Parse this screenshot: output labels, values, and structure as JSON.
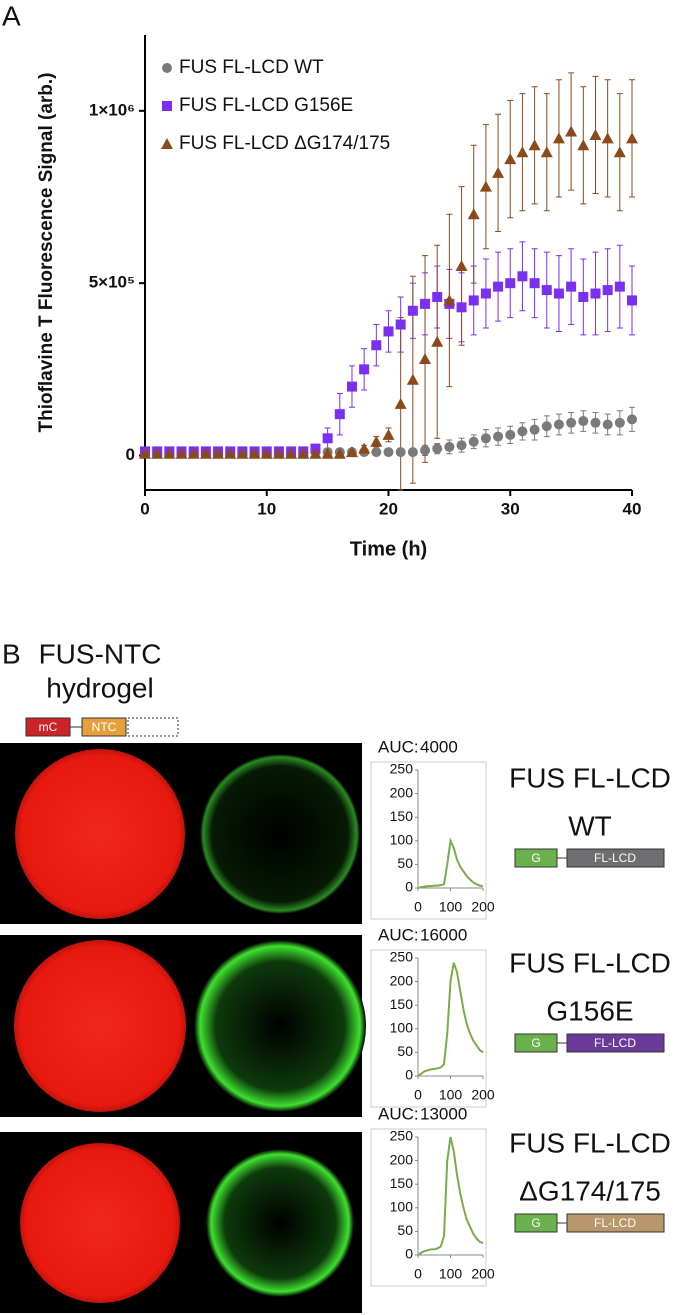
{
  "panel_labels": [
    "A",
    "B"
  ],
  "panel_b": {
    "title": [
      "FUS-NTC",
      "hydrogel"
    ],
    "construct": [
      "mC",
      "NTC"
    ],
    "rows": [
      {
        "name": [
          "FUS FL-LCD",
          "WT"
        ],
        "construct": [
          "G",
          "FL-LCD"
        ],
        "color": "#6d6e70"
      },
      {
        "name": [
          "FUS FL-LCD",
          "G156E"
        ],
        "construct": [
          "G",
          "FL-LCD"
        ],
        "color": "#6a3a9a"
      },
      {
        "name": [
          "FUS FL-LCD",
          "ΔG174/175"
        ],
        "construct": [
          "G",
          "FL-LCD"
        ],
        "color": "#b7976b"
      }
    ]
  },
  "chart_data": [
    {
      "type": "scatter",
      "xlabel": "Time (h)",
      "ylabel": "Thioflavine T Fluorescence Signal (arb.)",
      "xlim": [
        0,
        40
      ],
      "xticks": [
        0,
        10,
        20,
        30,
        40
      ],
      "ylim": [
        -100000,
        1220000
      ],
      "yticks": [
        {
          "value": 0,
          "label": "0"
        },
        {
          "value": 500000,
          "label": "5×10⁵"
        },
        {
          "value": 1000000,
          "label": "1×10⁶"
        }
      ],
      "legend": "top-left",
      "x": [
        0,
        1,
        2,
        3,
        4,
        5,
        6,
        7,
        8,
        9,
        10,
        11,
        12,
        13,
        14,
        15,
        16,
        17,
        18,
        19,
        20,
        21,
        22,
        23,
        24,
        25,
        26,
        27,
        28,
        29,
        30,
        31,
        32,
        33,
        34,
        35,
        36,
        37,
        38,
        39,
        40
      ],
      "series": [
        {
          "name": "FUS FL-LCD WT",
          "color": "#7a7a7a",
          "marker": "circle",
          "values": [
            10000,
            10000,
            10000,
            10000,
            10000,
            10000,
            10000,
            10000,
            10000,
            10000,
            10000,
            10000,
            10000,
            10000,
            10000,
            10000,
            10000,
            10000,
            10000,
            10000,
            10000,
            10000,
            10000,
            15000,
            20000,
            25000,
            30000,
            40000,
            50000,
            55000,
            60000,
            70000,
            75000,
            85000,
            90000,
            95000,
            100000,
            95000,
            90000,
            95000,
            105000
          ],
          "errors": [
            5000,
            5000,
            5000,
            5000,
            5000,
            5000,
            5000,
            5000,
            5000,
            5000,
            5000,
            5000,
            5000,
            5000,
            5000,
            5000,
            5000,
            5000,
            5000,
            5000,
            5000,
            5000,
            5000,
            15000,
            15000,
            20000,
            20000,
            20000,
            25000,
            25000,
            25000,
            25000,
            30000,
            30000,
            30000,
            30000,
            30000,
            30000,
            30000,
            35000,
            35000
          ]
        },
        {
          "name": "FUS FL-LCD G156E",
          "color": "#7b2ff0",
          "marker": "square",
          "values": [
            12000,
            12000,
            12000,
            12000,
            12000,
            12000,
            12000,
            12000,
            12000,
            12000,
            12000,
            12000,
            12000,
            12000,
            20000,
            50000,
            120000,
            200000,
            250000,
            320000,
            360000,
            380000,
            420000,
            440000,
            460000,
            440000,
            430000,
            450000,
            470000,
            490000,
            500000,
            520000,
            500000,
            480000,
            470000,
            490000,
            460000,
            470000,
            480000,
            490000,
            450000
          ],
          "errors": [
            5000,
            5000,
            5000,
            5000,
            5000,
            5000,
            5000,
            5000,
            5000,
            5000,
            5000,
            5000,
            5000,
            5000,
            10000,
            30000,
            60000,
            60000,
            60000,
            60000,
            60000,
            80000,
            80000,
            90000,
            90000,
            100000,
            100000,
            100000,
            100000,
            100000,
            100000,
            100000,
            100000,
            110000,
            110000,
            110000,
            110000,
            120000,
            120000,
            120000,
            100000
          ]
        },
        {
          "name": "FUS FL-LCD ΔG174/175",
          "color": "#8b4a1c",
          "marker": "triangle",
          "values": [
            5000,
            5000,
            5000,
            5000,
            5000,
            5000,
            5000,
            5000,
            5000,
            5000,
            5000,
            5000,
            5000,
            5000,
            5000,
            5000,
            5000,
            10000,
            20000,
            40000,
            60000,
            150000,
            220000,
            280000,
            330000,
            450000,
            550000,
            700000,
            780000,
            820000,
            860000,
            880000,
            900000,
            880000,
            920000,
            940000,
            900000,
            930000,
            920000,
            880000,
            920000
          ],
          "errors": [
            5000,
            5000,
            5000,
            5000,
            5000,
            5000,
            5000,
            5000,
            5000,
            5000,
            5000,
            5000,
            5000,
            5000,
            5000,
            5000,
            5000,
            8000,
            10000,
            15000,
            20000,
            250000,
            300000,
            300000,
            280000,
            250000,
            230000,
            200000,
            180000,
            170000,
            170000,
            170000,
            170000,
            170000,
            170000,
            170000,
            170000,
            170000,
            170000,
            170000,
            170000
          ]
        }
      ]
    },
    {
      "type": "line",
      "annotation": "AUC:",
      "auc": 4000,
      "color": "#78ad4a",
      "xlim": [
        0,
        200
      ],
      "xticks": [
        0,
        100,
        200
      ],
      "ylim": [
        0,
        250
      ],
      "yticks": [
        0,
        50,
        100,
        150,
        200,
        250
      ],
      "x": [
        0,
        10,
        20,
        30,
        40,
        50,
        60,
        70,
        80,
        90,
        100,
        110,
        120,
        130,
        140,
        150,
        160,
        170,
        180,
        190,
        200
      ],
      "values": [
        0,
        2,
        3,
        4,
        4,
        5,
        5,
        6,
        8,
        50,
        100,
        85,
        60,
        45,
        35,
        25,
        18,
        12,
        8,
        5,
        4
      ]
    },
    {
      "type": "line",
      "annotation": "AUC:",
      "auc": 16000,
      "color": "#78ad4a",
      "xlim": [
        0,
        200
      ],
      "xticks": [
        0,
        100,
        200
      ],
      "ylim": [
        0,
        250
      ],
      "yticks": [
        0,
        50,
        100,
        150,
        200,
        250
      ],
      "x": [
        0,
        10,
        20,
        30,
        40,
        50,
        60,
        70,
        80,
        90,
        100,
        110,
        120,
        130,
        140,
        150,
        160,
        170,
        180,
        190,
        200
      ],
      "values": [
        0,
        5,
        10,
        12,
        14,
        15,
        16,
        18,
        25,
        90,
        200,
        240,
        220,
        180,
        140,
        110,
        90,
        75,
        65,
        55,
        50
      ]
    },
    {
      "type": "line",
      "annotation": "AUC:",
      "auc": 13000,
      "color": "#78ad4a",
      "xlim": [
        0,
        200
      ],
      "xticks": [
        0,
        100,
        200
      ],
      "ylim": [
        0,
        250
      ],
      "yticks": [
        0,
        50,
        100,
        150,
        200,
        250
      ],
      "x": [
        0,
        10,
        20,
        30,
        40,
        50,
        60,
        70,
        80,
        90,
        100,
        110,
        120,
        130,
        140,
        150,
        160,
        170,
        180,
        190,
        200
      ],
      "values": [
        0,
        5,
        8,
        10,
        12,
        12,
        14,
        18,
        40,
        200,
        250,
        220,
        170,
        130,
        100,
        75,
        60,
        45,
        35,
        28,
        25
      ]
    }
  ]
}
